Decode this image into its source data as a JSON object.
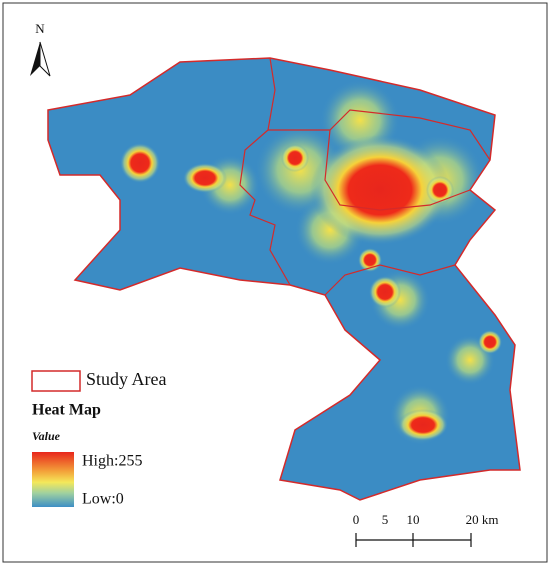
{
  "north": "N",
  "legend": {
    "study_area": "Study Area",
    "heat_map": "Heat Map",
    "value": "Value",
    "high": "High:255",
    "low": "Low:0"
  },
  "scale_bar": {
    "labels": [
      "0",
      "5",
      "10",
      "20 km"
    ]
  }
}
